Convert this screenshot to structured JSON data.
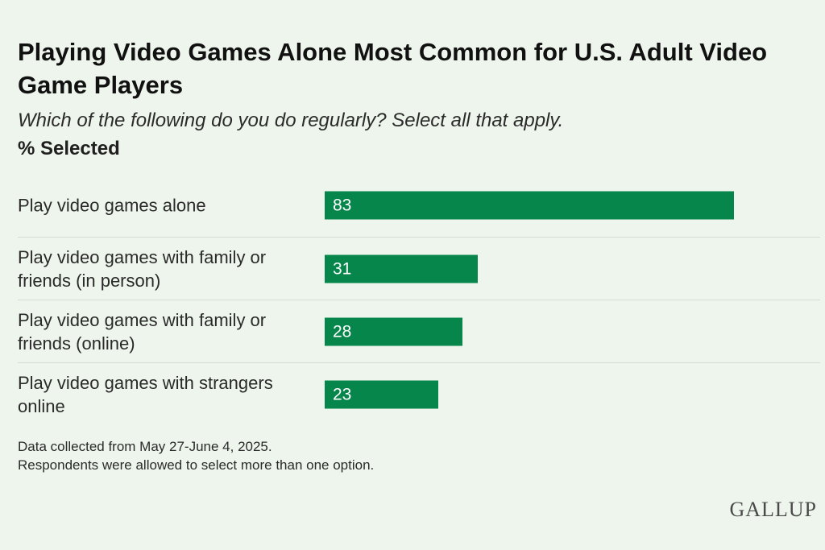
{
  "header": {
    "title": "Playing Video Games Alone Most Common for U.S. Adult Video Game Players",
    "subtitle": "Which of the following do you do regularly? Select all that apply.",
    "unit_label": "% Selected"
  },
  "chart_data": {
    "type": "bar",
    "orientation": "horizontal",
    "title": "Playing Video Games Alone Most Common for U.S. Adult Video Game Players",
    "subtitle": "Which of the following do you do regularly? Select all that apply.",
    "ylabel": "% Selected",
    "categories": [
      "Play video games alone",
      "Play video games with family or friends (in person)",
      "Play video games with family or friends (online)",
      "Play video games with strangers online"
    ],
    "values": [
      83,
      31,
      28,
      23
    ],
    "xlim": [
      0,
      100
    ],
    "grid": false,
    "bar_color": "#06864a"
  },
  "footer": {
    "note_1": "Data collected from May 27-June 4, 2025.",
    "note_2": "Respondents were allowed to select more than one option.",
    "brand": "GALLUP"
  },
  "colors": {
    "background": "#eef5ec",
    "bar": "#06864a",
    "bar_text": "#ffffff"
  }
}
